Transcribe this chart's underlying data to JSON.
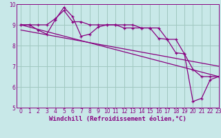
{
  "background_color": "#c8e8e8",
  "grid_color": "#a0c8c0",
  "line_color": "#880080",
  "xlabel": "Windchill (Refroidissement éolien,°C)",
  "xlim": [
    -0.5,
    23
  ],
  "ylim": [
    5,
    10
  ],
  "xtick_labels": [
    "0",
    "1",
    "2",
    "3",
    "4",
    "5",
    "6",
    "7",
    "8",
    "9",
    "10",
    "11",
    "12",
    "13",
    "14",
    "15",
    "16",
    "17",
    "18",
    "19",
    "20",
    "21",
    "22",
    "23"
  ],
  "xtick_pos": [
    0,
    1,
    2,
    3,
    4,
    5,
    6,
    7,
    8,
    9,
    10,
    11,
    12,
    13,
    14,
    15,
    16,
    17,
    18,
    19,
    20,
    21,
    22,
    23
  ],
  "ytick_pos": [
    5,
    6,
    7,
    8,
    9,
    10
  ],
  "line1_x": [
    0,
    1,
    2,
    3,
    4,
    5,
    6,
    7,
    8,
    9,
    10,
    11,
    12,
    13,
    14,
    15,
    16,
    17,
    18,
    19,
    20,
    21,
    22,
    23
  ],
  "line1_y": [
    9.0,
    9.0,
    9.0,
    9.0,
    9.3,
    9.7,
    9.15,
    9.15,
    9.0,
    9.0,
    9.0,
    9.0,
    8.85,
    8.85,
    8.85,
    8.85,
    8.35,
    8.3,
    7.65,
    7.6,
    6.85,
    6.5,
    6.5,
    6.5
  ],
  "line2_x": [
    0,
    1,
    2,
    3,
    4,
    5,
    6,
    7,
    8,
    9,
    10,
    11,
    12,
    13,
    14,
    15,
    16,
    17,
    18,
    19,
    20,
    21,
    22,
    23
  ],
  "line2_y": [
    9.0,
    9.0,
    8.75,
    8.55,
    9.25,
    9.85,
    9.4,
    8.45,
    8.55,
    8.9,
    9.0,
    9.0,
    9.0,
    9.0,
    8.85,
    8.85,
    8.85,
    8.3,
    8.3,
    7.6,
    5.3,
    5.45,
    6.35,
    6.5
  ],
  "line3_x": [
    0,
    23
  ],
  "line3_y": [
    9.0,
    6.5
  ],
  "line4_x": [
    0,
    23
  ],
  "line4_y": [
    8.75,
    7.0
  ],
  "xlabel_fontsize": 6.5,
  "tick_fontsize": 5.5
}
